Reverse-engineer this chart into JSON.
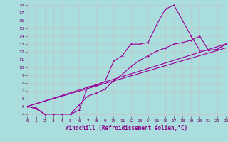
{
  "bg_color": "#aadddd",
  "grid_color": "#bbcccc",
  "line_color": "#990099",
  "xlabel": "Windchill (Refroidissement éolien,°C)",
  "xlabel_color": "#880088",
  "xlim": [
    0,
    23
  ],
  "ylim": [
    4,
    18
  ],
  "xticks": [
    0,
    1,
    2,
    3,
    4,
    5,
    6,
    7,
    8,
    9,
    10,
    11,
    12,
    13,
    14,
    15,
    16,
    17,
    18,
    19,
    20,
    21,
    22,
    23
  ],
  "yticks": [
    4,
    5,
    6,
    7,
    8,
    9,
    10,
    11,
    12,
    13,
    14,
    15,
    16,
    17,
    18
  ],
  "curve1_x": [
    0,
    1,
    2,
    3,
    4,
    5,
    6,
    7,
    8,
    9,
    10,
    11,
    12,
    13,
    14,
    15,
    16,
    17,
    18,
    19,
    20,
    21,
    22,
    23
  ],
  "curve1_y": [
    5.0,
    4.8,
    4.0,
    4.0,
    4.0,
    4.0,
    4.5,
    7.5,
    7.7,
    8.2,
    10.8,
    11.5,
    13.0,
    13.0,
    13.2,
    15.5,
    17.5,
    18.0,
    16.0,
    14.0,
    12.2,
    12.2,
    12.3,
    13.0
  ],
  "curve2_x": [
    0,
    1,
    2,
    3,
    4,
    5,
    6,
    7,
    8,
    9,
    10,
    11,
    12,
    13,
    14,
    15,
    16,
    17,
    18,
    19,
    20,
    21,
    22,
    23
  ],
  "curve2_y": [
    5.0,
    4.7,
    4.0,
    4.0,
    4.0,
    4.0,
    5.2,
    6.3,
    6.7,
    7.2,
    8.3,
    9.1,
    10.1,
    10.9,
    11.5,
    12.1,
    12.5,
    13.0,
    13.2,
    13.5,
    14.0,
    12.2,
    12.3,
    13.0
  ],
  "line3_x": [
    0,
    23
  ],
  "line3_y": [
    5.0,
    13.0
  ],
  "line4_x": [
    0,
    23
  ],
  "line4_y": [
    5.0,
    12.5
  ]
}
